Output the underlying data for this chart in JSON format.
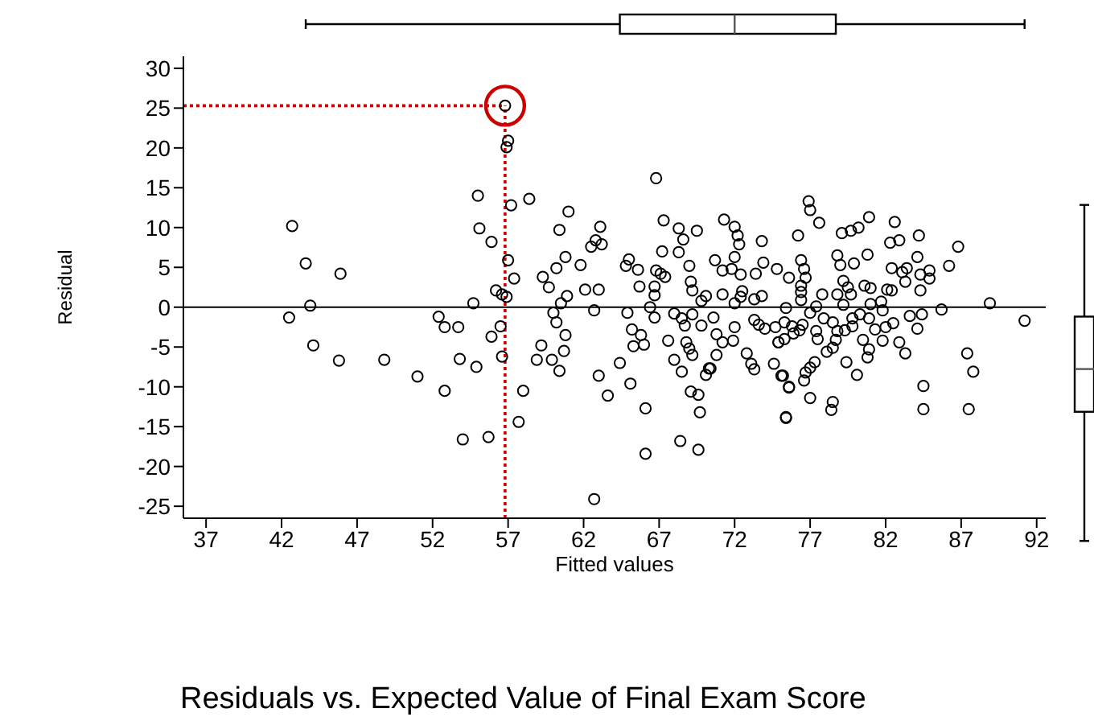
{
  "chart_data": {
    "type": "scatter",
    "title": "Residuals vs. Expected Value of Final Exam Score",
    "xlabel": "Fitted values",
    "ylabel": "Residual",
    "x": [
      56.8,
      57.0,
      56.9,
      55.0,
      57.2,
      42.7,
      55.1,
      55.9,
      43.6,
      45.9,
      57.0,
      56.2,
      56.6,
      56.9,
      43.9,
      54.7,
      42.5,
      52.4,
      52.8,
      53.7,
      56.5,
      55.9,
      44.1,
      56.6,
      45.8,
      48.8,
      53.8,
      54.9,
      51.0,
      52.8,
      54.0,
      55.7,
      57.4,
      66.8,
      58.4,
      61.0,
      60.4,
      63.1,
      62.8,
      62.5,
      63.2,
      60.8,
      61.8,
      60.2,
      59.3,
      59.7,
      62.1,
      63.0,
      60.9,
      60.5,
      62.7,
      60.0,
      60.2,
      60.8,
      59.2,
      58.9,
      59.9,
      60.4,
      60.7,
      58.0,
      57.7,
      63.0,
      63.6,
      64.4,
      65.1,
      66.1,
      66.1,
      62.7,
      65.0,
      64.8,
      65.6,
      65.7,
      64.9,
      65.2,
      65.3,
      65.8,
      66.0,
      67.3,
      67.2,
      66.8,
      67.1,
      67.4,
      66.7,
      66.7,
      66.4,
      66.7,
      67.6,
      68.0,
      68.5,
      68.3,
      68.6,
      69.5,
      68.3,
      69.0,
      69.1,
      69.2,
      69.8,
      70.1,
      68.0,
      68.5,
      69.2,
      68.7,
      69.8,
      68.8,
      69.0,
      69.2,
      70.1,
      70.3,
      69.1,
      69.6,
      69.7,
      68.4,
      69.6,
      71.3,
      72.0,
      72.2,
      72.3,
      72.0,
      73.8,
      70.7,
      71.2,
      71.8,
      72.4,
      73.4,
      73.9,
      74.8,
      71.2,
      72.5,
      72.0,
      72.4,
      73.3,
      73.8,
      70.6,
      70.8,
      71.2,
      70.8,
      70.4,
      71.9,
      72.0,
      73.3,
      73.6,
      74.0,
      74.7,
      72.8,
      73.1,
      73.3,
      74.6,
      74.9,
      75.2,
      75.6,
      75.4,
      76.9,
      77.0,
      77.6,
      76.2,
      79.1,
      79.7,
      80.2,
      80.9,
      82.6,
      84.2,
      86.8,
      82.3,
      82.9,
      78.8,
      79.0,
      79.9,
      80.8,
      84.1,
      86.2,
      76.4,
      76.6,
      75.6,
      76.7,
      76.4,
      76.4,
      76.4,
      77.8,
      79.2,
      79.5,
      78.8,
      79.7,
      79.2,
      80.6,
      81.0,
      81.0,
      81.7,
      81.8,
      82.1,
      82.4,
      82.4,
      83.1,
      83.4,
      83.3,
      84.3,
      84.9,
      84.9,
      84.3,
      85.7,
      88.9,
      91.2,
      75.4,
      77.4,
      77.0,
      75.3,
      75.8,
      76.5,
      77.4,
      77.5,
      76.3,
      74.9,
      75.3,
      75.9,
      77.9,
      78.5,
      79.8,
      80.3,
      80.9,
      78.8,
      79.3,
      79.8,
      81.3,
      82.0,
      82.5,
      83.6,
      84.4,
      84.1,
      78.1,
      78.5,
      78.7,
      80.5,
      80.9,
      80.8,
      81.8,
      82.9,
      83.3,
      77.3,
      77.0,
      76.7,
      76.6,
      75.6,
      75.1,
      79.4,
      80.1,
      77.0,
      75.4,
      78.5,
      78.4,
      84.5,
      84.5,
      87.4,
      87.8,
      87.5
    ],
    "series": [
      {
        "color": "#000000",
        "values": [
          25.3,
          20.9,
          20.1,
          14.0,
          12.8,
          10.2,
          9.9,
          8.2,
          5.5,
          4.2,
          5.9,
          2.1,
          1.6,
          1.3,
          0.2,
          0.5,
          -1.3,
          -1.2,
          -2.5,
          -2.5,
          -2.4,
          -3.7,
          -4.8,
          -6.2,
          -6.7,
          -6.6,
          -6.5,
          -7.5,
          -8.7,
          -10.5,
          -16.6,
          -16.3,
          3.6,
          16.2,
          13.6,
          12.0,
          9.7,
          10.1,
          8.4,
          7.6,
          7.9,
          6.3,
          5.3,
          4.9,
          3.8,
          2.5,
          2.2,
          2.2,
          1.4,
          0.5,
          -0.4,
          -0.7,
          -1.9,
          -3.5,
          -4.8,
          -6.6,
          -6.6,
          -8.0,
          -5.5,
          -10.5,
          -14.4,
          -8.6,
          -11.1,
          -7.0,
          -9.6,
          -12.7,
          -18.4,
          -24.1,
          6.0,
          5.2,
          4.7,
          2.6,
          -0.7,
          -2.8,
          -4.9,
          -3.5,
          -4.7,
          10.9,
          7.0,
          4.6,
          4.2,
          3.8,
          2.6,
          1.5,
          0.0,
          -1.3,
          -4.2,
          -6.6,
          -8.1,
          9.9,
          8.5,
          9.6,
          6.9,
          5.2,
          3.2,
          2.1,
          0.8,
          1.4,
          -0.8,
          -1.4,
          -0.9,
          -2.3,
          -2.3,
          -4.4,
          -5.2,
          -6.0,
          -8.5,
          -7.7,
          -10.6,
          -11.0,
          -13.2,
          -16.8,
          -17.9,
          11.0,
          10.1,
          9.0,
          7.9,
          6.3,
          8.3,
          5.9,
          4.6,
          4.8,
          4.1,
          4.2,
          5.6,
          4.8,
          1.6,
          2.0,
          0.5,
          1.3,
          1.0,
          1.4,
          -1.3,
          -3.4,
          -4.4,
          -6.0,
          -7.7,
          -4.2,
          -2.5,
          -1.6,
          -2.2,
          -2.7,
          -2.5,
          -5.8,
          -7.1,
          -7.8,
          -7.1,
          -4.4,
          -8.6,
          -10.1,
          -13.9,
          13.3,
          12.2,
          10.6,
          9.0,
          9.3,
          9.6,
          10.0,
          11.3,
          10.7,
          9.0,
          7.6,
          8.1,
          8.4,
          6.5,
          5.3,
          5.5,
          6.6,
          6.3,
          5.2,
          5.9,
          4.8,
          3.7,
          3.7,
          2.7,
          1.9,
          0.9,
          1.6,
          3.3,
          2.5,
          1.6,
          1.6,
          0.3,
          2.7,
          2.4,
          0.4,
          0.7,
          -0.4,
          2.2,
          2.1,
          4.9,
          4.4,
          4.9,
          3.2,
          4.1,
          4.6,
          3.6,
          2.1,
          -0.3,
          0.5,
          -1.7,
          -0.1,
          0.1,
          -0.7,
          -1.9,
          -2.4,
          -2.2,
          -3.0,
          -4.0,
          -2.9,
          -4.4,
          -4.0,
          -3.3,
          -1.4,
          -1.9,
          -1.4,
          -0.9,
          -1.4,
          -3.0,
          -2.9,
          -2.4,
          -2.8,
          -2.5,
          -2.0,
          -1.1,
          -0.9,
          -2.7,
          -5.6,
          -5.1,
          -4.1,
          -4.1,
          -5.3,
          -6.3,
          -4.2,
          -4.4,
          -5.8,
          -6.9,
          -7.6,
          -8.2,
          -9.2,
          -10.0,
          -8.6,
          -6.9,
          -8.5,
          -11.4,
          -13.8,
          -11.9,
          -12.9,
          -9.9,
          -12.8,
          -5.8,
          -8.1,
          -12.8
        ]
      }
    ],
    "marker": "circle",
    "xlim": [
      35.5,
      92.6
    ],
    "xticks": [
      37,
      42,
      47,
      52,
      57,
      62,
      67,
      72,
      77,
      82,
      87,
      92
    ],
    "ylim": [
      -26.5,
      31.5
    ],
    "yticks": [
      -25,
      -20,
      -15,
      -10,
      -5,
      0,
      5,
      10,
      15,
      20,
      25,
      30
    ],
    "ref_lines": [
      {
        "axis": "y",
        "value": 0,
        "color": "#000000",
        "line_style": "solid"
      },
      {
        "axis": "x",
        "value": 56.8,
        "color": "#cc0000",
        "line_style": "dotted"
      },
      {
        "axis": "y",
        "value": 25.3,
        "color": "#cc0000",
        "line_style": "dotted"
      }
    ]
  }
}
